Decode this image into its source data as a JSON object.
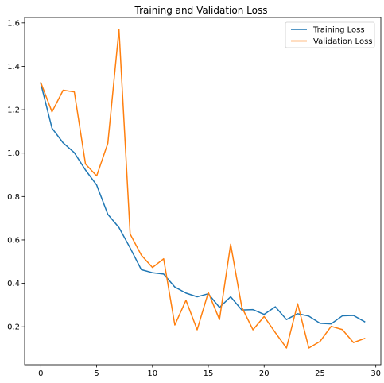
{
  "chart_data": {
    "type": "line",
    "title": "Training and Validation Loss",
    "xlabel": "",
    "ylabel": "",
    "x": [
      0,
      1,
      2,
      3,
      4,
      5,
      6,
      7,
      8,
      9,
      10,
      11,
      12,
      13,
      14,
      15,
      16,
      17,
      18,
      19,
      20,
      21,
      22,
      23,
      24,
      25,
      26,
      27,
      28,
      29
    ],
    "xlim": [
      -1.45,
      30.45
    ],
    "ylim": [
      0.025,
      1.625
    ],
    "xticks": [
      0,
      5,
      10,
      15,
      20,
      25,
      30
    ],
    "xtick_labels": [
      "0",
      "5",
      "10",
      "15",
      "20",
      "25",
      "30"
    ],
    "yticks": [
      0.2,
      0.4,
      0.6,
      0.8,
      1.0,
      1.2,
      1.4,
      1.6
    ],
    "ytick_labels": [
      "0.2",
      "0.4",
      "0.6",
      "0.8",
      "1.0",
      "1.2",
      "1.4",
      "1.6"
    ],
    "grid": false,
    "legend_position": "top-right",
    "series": [
      {
        "name": "Training Loss",
        "color": "#1f77b4",
        "values": [
          1.32,
          1.115,
          1.047,
          1.002,
          0.922,
          0.853,
          0.718,
          0.657,
          0.563,
          0.463,
          0.449,
          0.443,
          0.383,
          0.355,
          0.338,
          0.352,
          0.289,
          0.338,
          0.277,
          0.279,
          0.257,
          0.292,
          0.233,
          0.26,
          0.249,
          0.216,
          0.213,
          0.25,
          0.252,
          0.223
        ]
      },
      {
        "name": "Validation Loss",
        "color": "#ff7f0e",
        "values": [
          1.325,
          1.19,
          1.29,
          1.282,
          0.95,
          0.895,
          1.045,
          1.57,
          0.627,
          0.53,
          0.473,
          0.513,
          0.208,
          0.322,
          0.186,
          0.358,
          0.233,
          0.58,
          0.29,
          0.186,
          0.247,
          0.173,
          0.102,
          0.306,
          0.102,
          0.132,
          0.202,
          0.187,
          0.127,
          0.146
        ]
      }
    ]
  }
}
